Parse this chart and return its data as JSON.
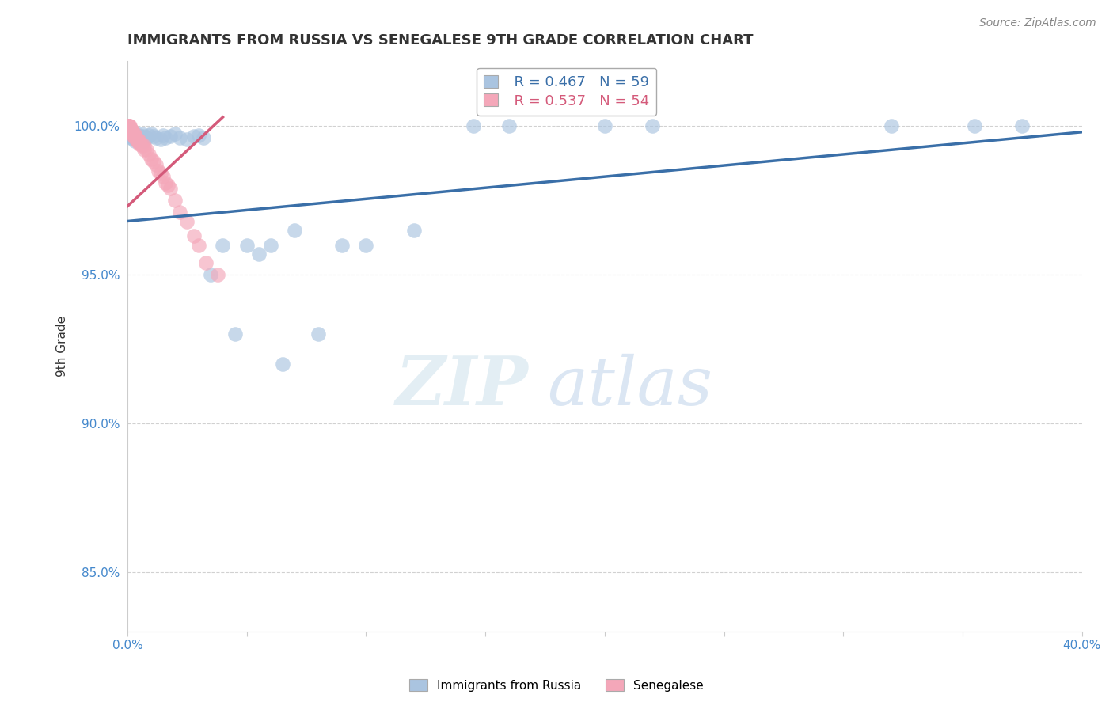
{
  "title": "IMMIGRANTS FROM RUSSIA VS SENEGALESE 9TH GRADE CORRELATION CHART",
  "source_text": "Source: ZipAtlas.com",
  "ylabel": "9th Grade",
  "x_min": 0.0,
  "x_max": 0.4,
  "y_min": 0.83,
  "y_max": 1.022,
  "russia_color": "#aac4e0",
  "russia_edge_color": "#aac4e0",
  "russia_line_color": "#3a6fa8",
  "senegal_color": "#f4a7b9",
  "senegal_edge_color": "#f4a7b9",
  "senegal_line_color": "#d45a7a",
  "legend_russia_label": "Immigrants from Russia",
  "legend_senegal_label": "Senegalese",
  "R_russia": 0.467,
  "N_russia": 59,
  "R_senegal": 0.537,
  "N_senegal": 54,
  "watermark_zip": "ZIP",
  "watermark_atlas": "atlas",
  "grid_color": "#cccccc",
  "axis_color": "#cccccc",
  "tick_color": "#4488cc",
  "title_color": "#333333",
  "russia_x": [
    0.0003,
    0.0005,
    0.0007,
    0.001,
    0.001,
    0.0013,
    0.0015,
    0.0017,
    0.002,
    0.002,
    0.0022,
    0.0025,
    0.003,
    0.003,
    0.003,
    0.0035,
    0.004,
    0.004,
    0.0045,
    0.005,
    0.005,
    0.006,
    0.006,
    0.007,
    0.007,
    0.008,
    0.009,
    0.01,
    0.011,
    0.012,
    0.014,
    0.015,
    0.016,
    0.018,
    0.02,
    0.022,
    0.025,
    0.028,
    0.03,
    0.032,
    0.035,
    0.04,
    0.045,
    0.05,
    0.055,
    0.06,
    0.065,
    0.07,
    0.08,
    0.09,
    0.1,
    0.12,
    0.145,
    0.16,
    0.2,
    0.22,
    0.32,
    0.355,
    0.375
  ],
  "russia_y": [
    0.997,
    0.998,
    0.999,
    0.998,
    0.997,
    0.9975,
    0.996,
    0.9985,
    0.996,
    0.997,
    0.9965,
    0.9975,
    0.997,
    0.996,
    0.995,
    0.9965,
    0.997,
    0.9955,
    0.996,
    0.9965,
    0.997,
    0.9975,
    0.996,
    0.9965,
    0.995,
    0.996,
    0.997,
    0.9975,
    0.9965,
    0.996,
    0.9955,
    0.997,
    0.996,
    0.9965,
    0.9975,
    0.996,
    0.9955,
    0.9965,
    0.997,
    0.996,
    0.95,
    0.96,
    0.93,
    0.96,
    0.957,
    0.96,
    0.92,
    0.965,
    0.93,
    0.96,
    0.96,
    0.965,
    1.0,
    1.0,
    1.0,
    1.0,
    1.0,
    1.0,
    1.0
  ],
  "senegal_x": [
    0.0002,
    0.0003,
    0.0004,
    0.0005,
    0.0006,
    0.0007,
    0.0008,
    0.0009,
    0.001,
    0.001,
    0.0012,
    0.0013,
    0.0015,
    0.0015,
    0.0017,
    0.002,
    0.002,
    0.002,
    0.0022,
    0.0025,
    0.003,
    0.003,
    0.003,
    0.0032,
    0.0035,
    0.004,
    0.004,
    0.0042,
    0.0045,
    0.005,
    0.005,
    0.005,
    0.006,
    0.006,
    0.007,
    0.007,
    0.008,
    0.009,
    0.01,
    0.011,
    0.012,
    0.013,
    0.014,
    0.015,
    0.016,
    0.017,
    0.018,
    0.02,
    0.022,
    0.025,
    0.028,
    0.03,
    0.033,
    0.038
  ],
  "senegal_y": [
    1.0,
    1.0,
    1.0,
    1.0,
    1.0,
    1.0,
    0.999,
    0.9995,
    1.0,
    0.999,
    0.999,
    0.9985,
    0.999,
    0.998,
    0.9985,
    0.9985,
    0.998,
    0.9975,
    0.9975,
    0.997,
    0.9975,
    0.9965,
    0.996,
    0.996,
    0.9965,
    0.9955,
    0.995,
    0.9955,
    0.995,
    0.995,
    0.9945,
    0.994,
    0.994,
    0.9935,
    0.9935,
    0.992,
    0.992,
    0.9905,
    0.989,
    0.988,
    0.987,
    0.985,
    0.984,
    0.983,
    0.981,
    0.98,
    0.979,
    0.975,
    0.971,
    0.968,
    0.963,
    0.96,
    0.954,
    0.95
  ],
  "russia_line_x": [
    0.0,
    0.4
  ],
  "russia_line_y": [
    0.968,
    0.998
  ],
  "senegal_line_x": [
    0.0,
    0.04
  ],
  "senegal_line_y": [
    0.973,
    1.003
  ]
}
